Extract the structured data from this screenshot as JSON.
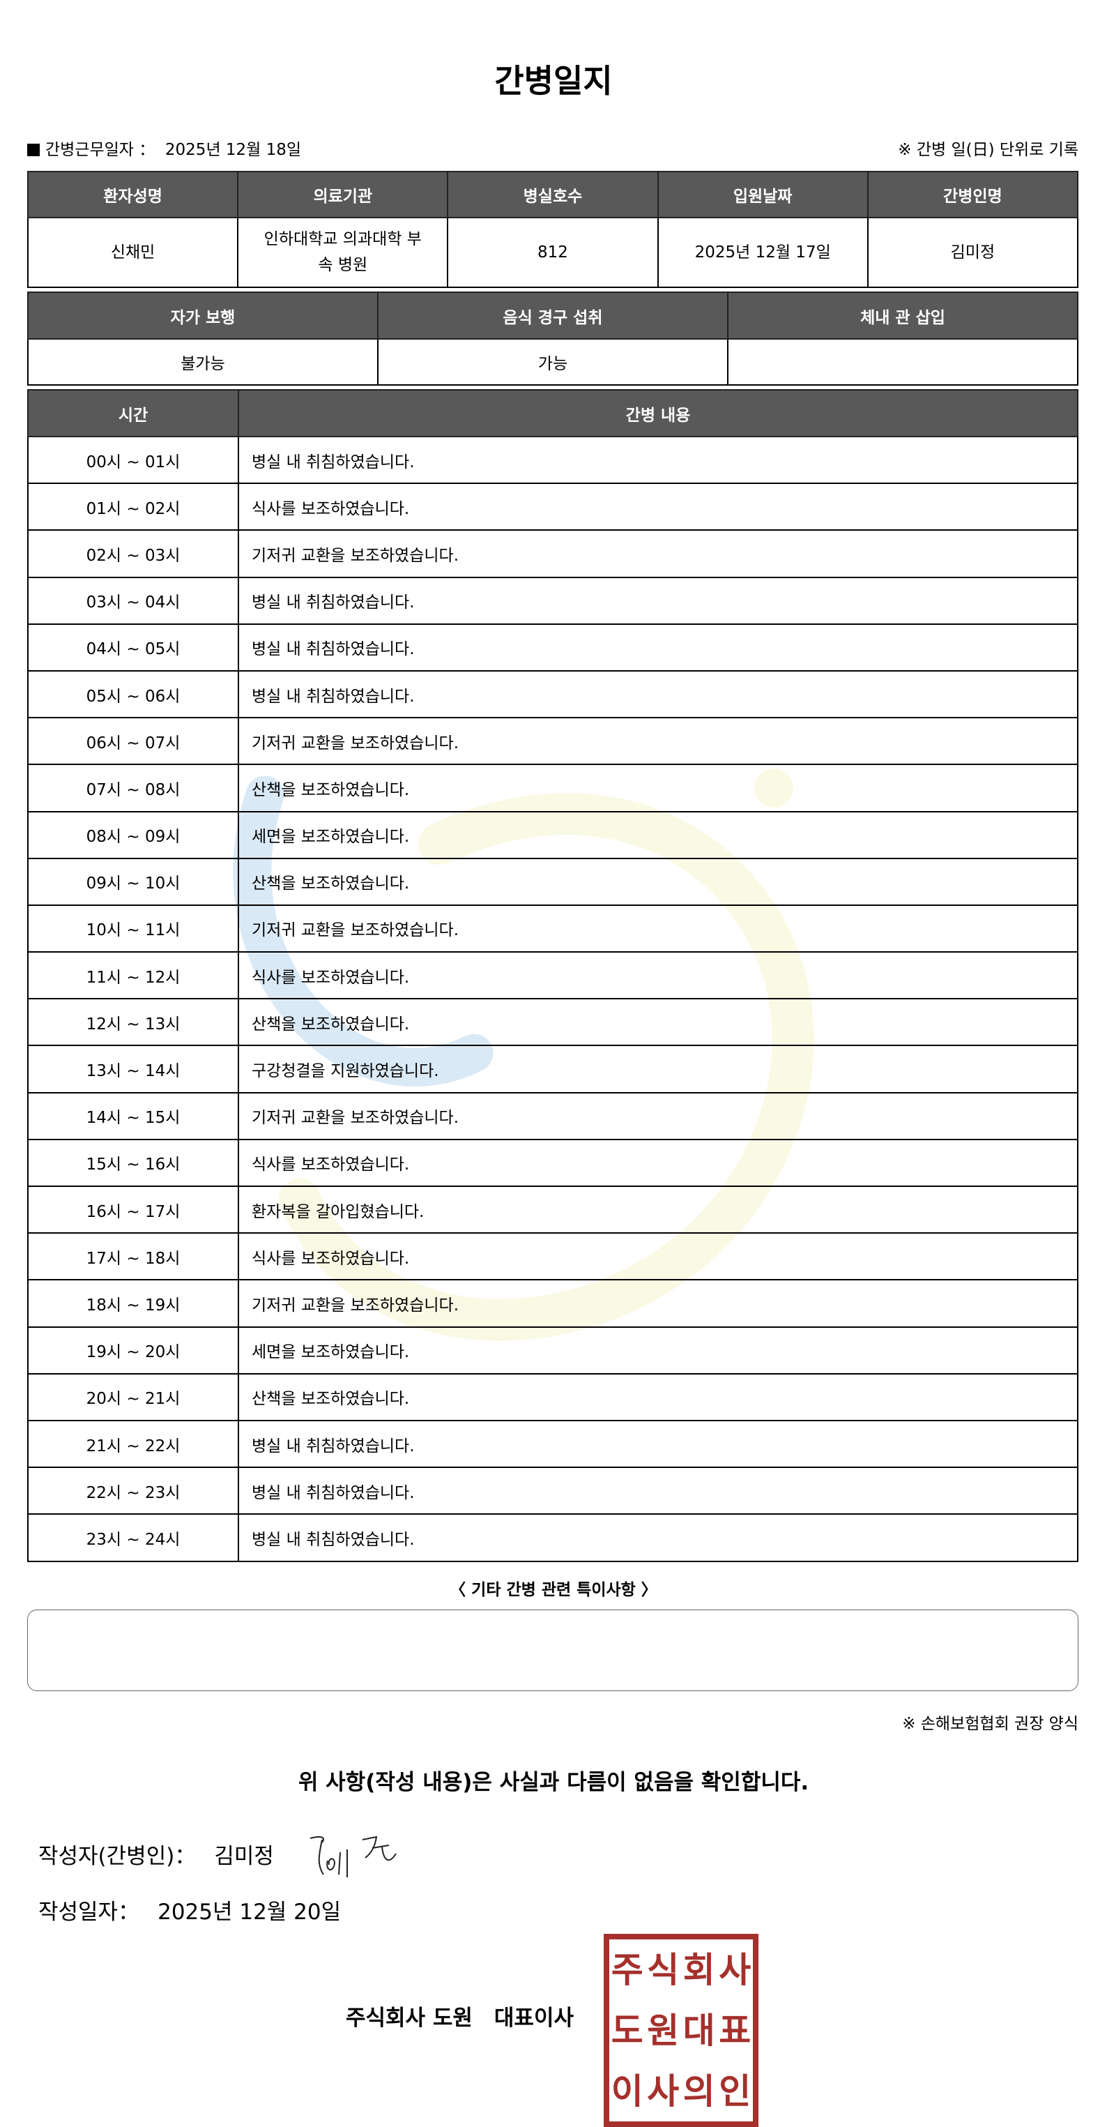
{
  "title": "간병일지",
  "info": {
    "work_date_label": "간병근무일자 ：",
    "work_date": "2025년 12월 18일",
    "note": "※ 간병 일(日) 단위로 기록"
  },
  "patient_table": {
    "headers": [
      "환자성명",
      "의료기관",
      "병실호수",
      "입원날짜",
      "간병인명"
    ],
    "values": [
      "신채민",
      "인하대학교 의과대학 부속 병원",
      "812",
      "2025년 12월 17일",
      "김미정"
    ]
  },
  "status_table": {
    "headers": [
      "자가 보행",
      "음식 경구 섭취",
      "체내 관 삽입"
    ],
    "values": [
      "불가능",
      "가능",
      ""
    ]
  },
  "log_table": {
    "headers": [
      "시간",
      "간병 내용"
    ],
    "rows": [
      [
        "00시 ~ 01시",
        "병실 내 취침하였습니다."
      ],
      [
        "01시 ~ 02시",
        "식사를 보조하였습니다."
      ],
      [
        "02시 ~ 03시",
        "기저귀 교환을 보조하였습니다."
      ],
      [
        "03시 ~ 04시",
        "병실 내 취침하였습니다."
      ],
      [
        "04시 ~ 05시",
        "병실 내 취침하였습니다."
      ],
      [
        "05시 ~ 06시",
        "병실 내 취침하였습니다."
      ],
      [
        "06시 ~ 07시",
        "기저귀 교환을 보조하였습니다."
      ],
      [
        "07시 ~ 08시",
        "산책을 보조하였습니다."
      ],
      [
        "08시 ~ 09시",
        "세면을 보조하였습니다."
      ],
      [
        "09시 ~ 10시",
        "산책을 보조하였습니다."
      ],
      [
        "10시 ~ 11시",
        "기저귀 교환을 보조하였습니다."
      ],
      [
        "11시 ~ 12시",
        "식사를 보조하였습니다."
      ],
      [
        "12시 ~ 13시",
        "산책을 보조하였습니다."
      ],
      [
        "13시 ~ 14시",
        "구강청결을 지원하였습니다."
      ],
      [
        "14시 ~ 15시",
        "기저귀 교환을 보조하였습니다."
      ],
      [
        "15시 ~ 16시",
        "식사를 보조하였습니다."
      ],
      [
        "16시 ~ 17시",
        "환자복을 갈아입혔습니다."
      ],
      [
        "17시 ~ 18시",
        "식사를 보조하였습니다."
      ],
      [
        "18시 ~ 19시",
        "기저귀 교환을 보조하였습니다."
      ],
      [
        "19시 ~ 20시",
        "세면을 보조하였습니다."
      ],
      [
        "20시 ~ 21시",
        "산책을 보조하였습니다."
      ],
      [
        "21시 ~ 22시",
        "병실 내 취침하였습니다."
      ],
      [
        "22시 ~ 23시",
        "병실 내 취침하였습니다."
      ],
      [
        "23시 ~ 24시",
        "병실 내 취침하였습니다."
      ]
    ]
  },
  "other_notes": {
    "label": "〈 기타 간병 관련 특이사항 〉",
    "value": ""
  },
  "recommend_note": "※ 손해보험협회 권장 양식",
  "confirm_text": "위 사항(작성 내용)은 사실과 다름이 없음을 확인합니다.",
  "writer": {
    "label": "작성자(간병인)：",
    "name": "김미정",
    "signature": "김미정"
  },
  "written_date": {
    "label": "작성일자：",
    "value": "2025년 12월 20일"
  },
  "company": "주식회사 도원　대표이사",
  "stamp_text": "주식회사도원대표이사의인",
  "colors": {
    "header_bg": "#595959",
    "stamp": "#a5302c",
    "watermark_blue": "#5aa0d8",
    "watermark_yellow": "#e6e68a"
  }
}
